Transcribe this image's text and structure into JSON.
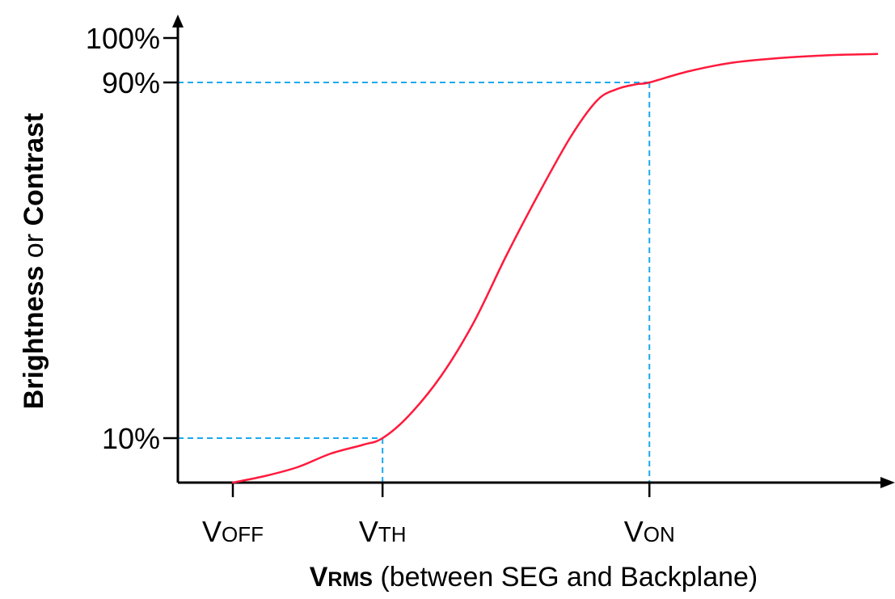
{
  "chart_data": {
    "type": "line",
    "ylabel_parts": [
      "Brightness",
      " or ",
      "Contrast"
    ],
    "xlabel_parts": [
      "V",
      "RMS",
      " (between SEG and Backplane)"
    ],
    "y_ticks": [
      {
        "label": "100%",
        "value": 100
      },
      {
        "label": "90%",
        "value": 90
      },
      {
        "label": "10%",
        "value": 10
      }
    ],
    "x_ticks": [
      {
        "main": "V",
        "sub": "OFF",
        "value": 0.0
      },
      {
        "main": "V",
        "sub": "TH",
        "value": 0.23
      },
      {
        "main": "V",
        "sub": "ON",
        "value": 0.64
      }
    ],
    "ylim": [
      0,
      100
    ],
    "xlim": [
      -0.08,
      1.0
    ],
    "curve": {
      "color": "#ff1a3c",
      "x": [
        0.0,
        0.05,
        0.1,
        0.15,
        0.2,
        0.23,
        0.27,
        0.32,
        0.37,
        0.42,
        0.47,
        0.52,
        0.56,
        0.59,
        0.62,
        0.64,
        0.7,
        0.77,
        0.85,
        0.93,
        0.99
      ],
      "y": [
        0,
        1.5,
        3.5,
        6.5,
        8.5,
        10,
        15,
        24,
        36,
        51,
        65,
        78,
        86,
        88.5,
        89.6,
        90,
        92.5,
        94.5,
        95.6,
        96.2,
        96.4
      ]
    },
    "guides": [
      {
        "x": 0.23,
        "y": 10
      },
      {
        "x": 0.64,
        "y": 90
      }
    ],
    "guide_color": "#1aa9ef",
    "axis_color": "#000000"
  }
}
